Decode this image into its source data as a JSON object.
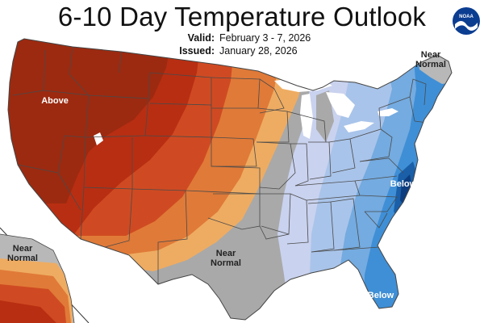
{
  "header": {
    "title": "6-10 Day Temperature Outlook",
    "valid_label": "Valid:",
    "valid_value": "February 3 - 7, 2026",
    "issued_label": "Issued:",
    "issued_value": "January 28, 2026"
  },
  "logo": {
    "text": "NOAA",
    "icon": "noaa-logo-icon"
  },
  "map_labels": {
    "above_west": "Above",
    "near_normal_northeast": "Near Normal",
    "near_normal_texas": "Near Normal",
    "below_mid_atlantic": "Below",
    "below_florida": "Below",
    "near_normal_alaska": "Near Normal"
  },
  "colors": {
    "above_strong": "#9c2a10",
    "above_high": "#b82e12",
    "above_mid": "#cf4a22",
    "above_low": "#e07a38",
    "above_slight": "#eeac62",
    "near_normal": "#a9a9a9",
    "below_slight": "#c9d2ee",
    "below_low": "#a9c4ea",
    "below_mid": "#74abe0",
    "below_high": "#3f8fd6",
    "below_strong": "#1a5fa8",
    "below_extreme": "#0d3d80",
    "water": "#ffffff",
    "borders": "#4a4a4a"
  }
}
